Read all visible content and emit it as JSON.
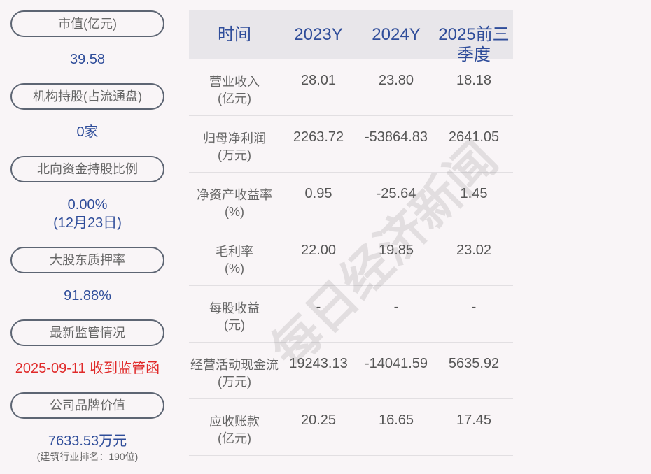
{
  "left": {
    "items": [
      {
        "label": "市值(亿元)",
        "value": "39.58"
      },
      {
        "label": "机构持股(占流通盘)",
        "value": "0家"
      },
      {
        "label": "北向资金持股比例",
        "value": "0.00%",
        "value2": "(12月23日)"
      },
      {
        "label": "大股东质押率",
        "value": "91.88%"
      },
      {
        "label": "最新监管情况",
        "value": "2025-09-11 收到监管函"
      },
      {
        "label": "公司品牌价值",
        "value": "7633.53万元",
        "value2": "(建筑行业排名：190位)"
      }
    ]
  },
  "table": {
    "headers": [
      "时间",
      "2023Y",
      "2024Y",
      "2025前三季度"
    ],
    "rows": [
      {
        "l1": "营业收入",
        "l2": "(亿元)",
        "v": [
          "28.01",
          "23.80",
          "18.18"
        ]
      },
      {
        "l1": "归母净利润",
        "l2": "(万元)",
        "v": [
          "2263.72",
          "-53864.83",
          "2641.05"
        ]
      },
      {
        "l1": "净资产收益率",
        "l2": "(%)",
        "v": [
          "0.95",
          "-25.64",
          "1.45"
        ]
      },
      {
        "l1": "毛利率",
        "l2": "(%)",
        "v": [
          "22.00",
          "19.85",
          "23.02"
        ]
      },
      {
        "l1": "每股收益",
        "l2": "(元)",
        "v": [
          "-",
          "-",
          "-"
        ]
      },
      {
        "l1": "经营活动现金流",
        "l2": "(万元)",
        "v": [
          "19243.13",
          "-14041.59",
          "5635.92"
        ]
      },
      {
        "l1": "应收账款",
        "l2": "(亿元)",
        "v": [
          "20.25",
          "16.65",
          "17.45"
        ]
      }
    ]
  },
  "watermark": "每日经济新闻",
  "colors": {
    "accent": "#2f4d9a",
    "alert": "#e02a2a"
  }
}
